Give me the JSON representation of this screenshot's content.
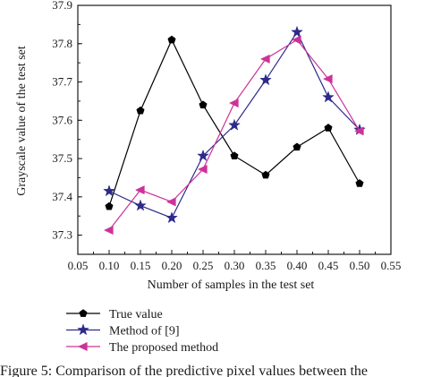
{
  "caption": "Figure 5: Comparison of the predictive pixel values between the",
  "chart_data": {
    "type": "line",
    "title": "",
    "xlabel": "Number of samples in the test set",
    "ylabel": "Grayscale value of the test set",
    "xlim": [
      0.05,
      0.55
    ],
    "ylim": [
      37.25,
      37.9
    ],
    "x_ticks": [
      "0.05",
      "0.10",
      "0.15",
      "0.20",
      "0.25",
      "0.30",
      "0.35",
      "0.40",
      "0.45",
      "0.50",
      "0.55"
    ],
    "y_ticks": [
      "37.3",
      "37.4",
      "37.5",
      "37.6",
      "37.7",
      "37.8",
      "37.9"
    ],
    "x": [
      0.1,
      0.15,
      0.2,
      0.25,
      0.3,
      0.35,
      0.4,
      0.45,
      0.5
    ],
    "grid": false,
    "legend_position": "bottom-left",
    "series": [
      {
        "name": "True value",
        "color": "#000000",
        "marker": "pentagon",
        "values": [
          37.375,
          37.625,
          37.81,
          37.64,
          37.507,
          37.457,
          37.53,
          37.58,
          37.435
        ]
      },
      {
        "name": "Method of [9]",
        "color": "#2e2a8a",
        "marker": "star",
        "values": [
          37.415,
          37.377,
          37.345,
          37.507,
          37.587,
          37.705,
          37.83,
          37.66,
          37.575
        ]
      },
      {
        "name": "The proposed method",
        "color": "#cc3399",
        "marker": "triangle-left",
        "values": [
          37.313,
          37.418,
          37.387,
          37.472,
          37.645,
          37.76,
          37.81,
          37.708,
          37.572
        ]
      }
    ]
  }
}
